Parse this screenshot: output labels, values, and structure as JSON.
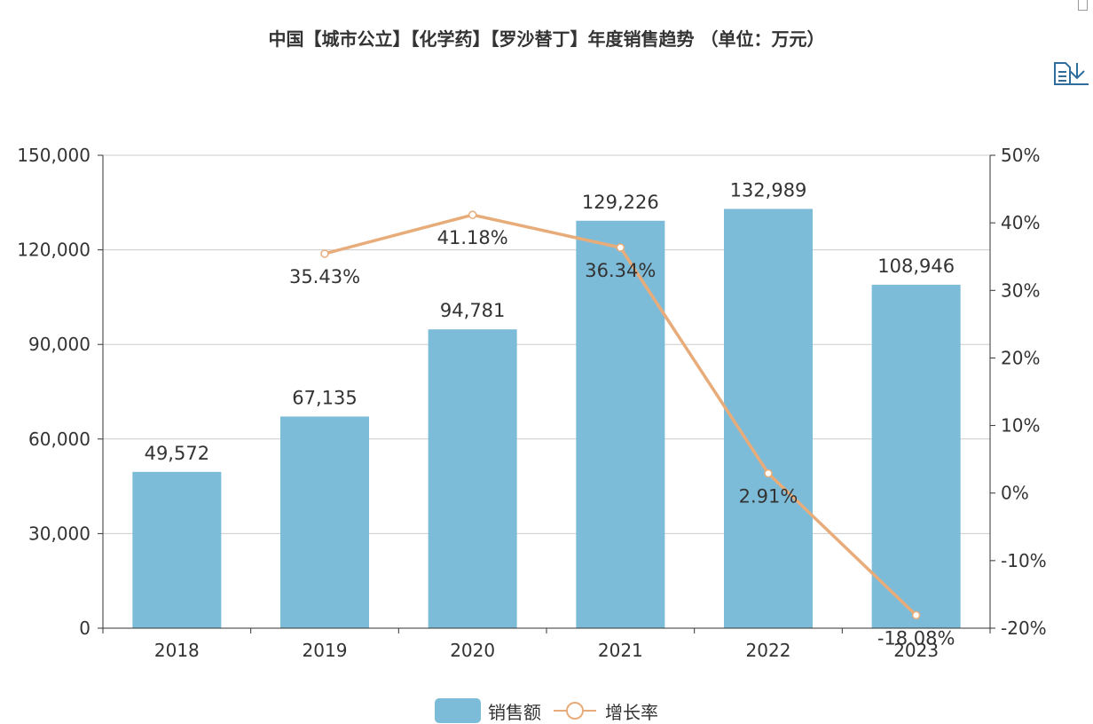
{
  "title": "中国【城市公立】【化学药】【罗沙替丁】年度销售趋势 （单位：万元）",
  "toolbox": {
    "data_view_icon": "document-icon",
    "download_icon": "download-icon"
  },
  "colors": {
    "bar": "#7dbcd9",
    "line": "#e8ac7a",
    "axis": "#333333",
    "grid": "#cccccc",
    "icon": "#2f6d9c"
  },
  "chart_data": {
    "type": "bar",
    "title": "中国【城市公立】【化学药】【罗沙替丁】年度销售趋势 （单位：万元）",
    "categories": [
      "2018",
      "2019",
      "2020",
      "2021",
      "2022",
      "2023"
    ],
    "series": [
      {
        "name": "销售额",
        "type": "bar",
        "axis": "left",
        "values": [
          49572,
          67135,
          94781,
          129226,
          132989,
          108946
        ],
        "labels": [
          "49,572",
          "67,135",
          "94,781",
          "129,226",
          "132,989",
          "108,946"
        ]
      },
      {
        "name": "增长率",
        "type": "line",
        "axis": "right",
        "values": [
          null,
          35.43,
          41.18,
          36.34,
          2.91,
          -18.08
        ],
        "labels": [
          "",
          "35.43%",
          "41.18%",
          "36.34%",
          "2.91%",
          "-18.08%"
        ]
      }
    ],
    "y_left": {
      "min": 0,
      "max": 150000,
      "ticks": [
        0,
        30000,
        60000,
        90000,
        120000,
        150000
      ],
      "tick_labels": [
        "0",
        "30,000",
        "60,000",
        "90,000",
        "120,000",
        "150,000"
      ]
    },
    "y_right": {
      "min": -20,
      "max": 50,
      "ticks": [
        -20,
        -10,
        0,
        10,
        20,
        30,
        40,
        50
      ],
      "tick_labels": [
        "-20%",
        "-10%",
        "0%",
        "10%",
        "20%",
        "30%",
        "40%",
        "50%"
      ]
    },
    "grid": true,
    "legend_position": "bottom-center"
  },
  "legend": {
    "items": [
      {
        "label": "销售额"
      },
      {
        "label": "增长率"
      }
    ]
  }
}
